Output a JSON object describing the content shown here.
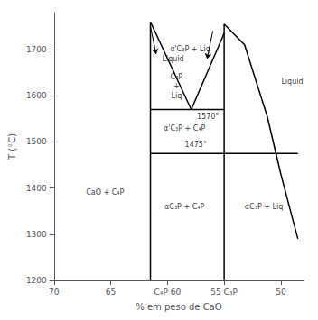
{
  "chart_data": {
    "type": "line",
    "xlabel": "% em peso de CaO",
    "ylabel": "T (°C)",
    "xlim": [
      70,
      48
    ],
    "ylim": [
      1200,
      1780
    ],
    "xticks": [
      70,
      65,
      {
        "value": 60,
        "label": "C₄P 60"
      },
      {
        "value": 55,
        "label": "55 C₃P"
      },
      50
    ],
    "yticks": [
      1200,
      1300,
      1400,
      1500,
      1600,
      1700
    ],
    "grid": false,
    "series": [
      {
        "color": "#000000",
        "x": [
          61.5,
          61.5
        ],
        "values": [
          1200,
          1760
        ]
      },
      {
        "color": "#000000",
        "x": [
          55.0,
          55.0
        ],
        "values": [
          1200,
          1755
        ]
      },
      {
        "color": "#000000",
        "x": [
          61.5,
          55.0
        ],
        "values": [
          1570,
          1570
        ]
      },
      {
        "color": "#000000",
        "x": [
          61.5,
          55.0
        ],
        "values": [
          1475,
          1475
        ]
      },
      {
        "color": "#000000",
        "x": [
          55.0,
          48.5
        ],
        "values": [
          1475,
          1475
        ]
      },
      {
        "color": "#000000",
        "x": [
          61.5,
          57.9
        ],
        "values": [
          1760,
          1570
        ]
      },
      {
        "color": "#000000",
        "x": [
          57.9,
          55.0
        ],
        "values": [
          1570,
          1735
        ]
      },
      {
        "color": "#000000",
        "x": [
          55.0,
          53.2,
          51.2,
          50.0,
          49.2,
          48.5
        ],
        "values": [
          1755,
          1710,
          1555,
          1430,
          1355,
          1290
        ]
      },
      {
        "type": "arrow",
        "color": "#000000",
        "x": [
          61.5,
          61.0
        ],
        "values": [
          1750,
          1690
        ]
      },
      {
        "type": "arrow",
        "color": "#000000",
        "x": [
          56.0,
          56.5
        ],
        "values": [
          1740,
          1680
        ]
      }
    ],
    "annotations": [
      {
        "text": "CaO + C₄P",
        "x": 65.5,
        "y": 1390
      },
      {
        "text": "C₄P",
        "x": 59.2,
        "y": 1640
      },
      {
        "text": "+",
        "x": 59.2,
        "y": 1620
      },
      {
        "text": "Liq",
        "x": 59.2,
        "y": 1600
      },
      {
        "text": "α'C₃P + C₄P",
        "x": 58.5,
        "y": 1530
      },
      {
        "text": "1475°",
        "x": 57.5,
        "y": 1493
      },
      {
        "text": "αC₃P + C₄P",
        "x": 58.5,
        "y": 1360
      },
      {
        "text": "αC₃P + Liq",
        "x": 51.5,
        "y": 1360
      },
      {
        "text": "α'C₃P + Liq",
        "x": 58.0,
        "y": 1700
      },
      {
        "text": "1570°",
        "x": 57.4,
        "y": 1555,
        "align": "left"
      },
      {
        "text": "Liquid",
        "x": 59.5,
        "y": 1680
      },
      {
        "text": "Liquid",
        "x": 49.0,
        "y": 1630
      }
    ]
  }
}
